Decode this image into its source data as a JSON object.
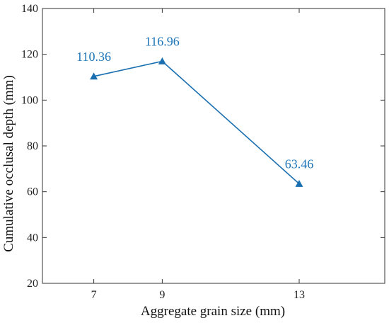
{
  "chart_data": {
    "type": "line",
    "title": "",
    "xlabel": "Aggregate grain size (mm)",
    "ylabel": "Cumulative occlusal depth (mm)",
    "x": [
      7,
      9,
      13
    ],
    "x_ticks": [
      7,
      9,
      13
    ],
    "xlim": [
      5.5,
      15.5
    ],
    "ylim": [
      20,
      140
    ],
    "y_ticks": [
      20,
      40,
      60,
      80,
      100,
      120,
      140
    ],
    "grid": false,
    "legend": "none",
    "series": [
      {
        "values": [
          110.36,
          116.96,
          63.46
        ],
        "labels": [
          "110.36",
          "116.96",
          "63.46"
        ],
        "marker": "triangle",
        "color": "#1a6fb0"
      }
    ],
    "colors": {
      "series": "#1a6fb0",
      "label": "#1b75b8",
      "axis": "#333333"
    }
  }
}
